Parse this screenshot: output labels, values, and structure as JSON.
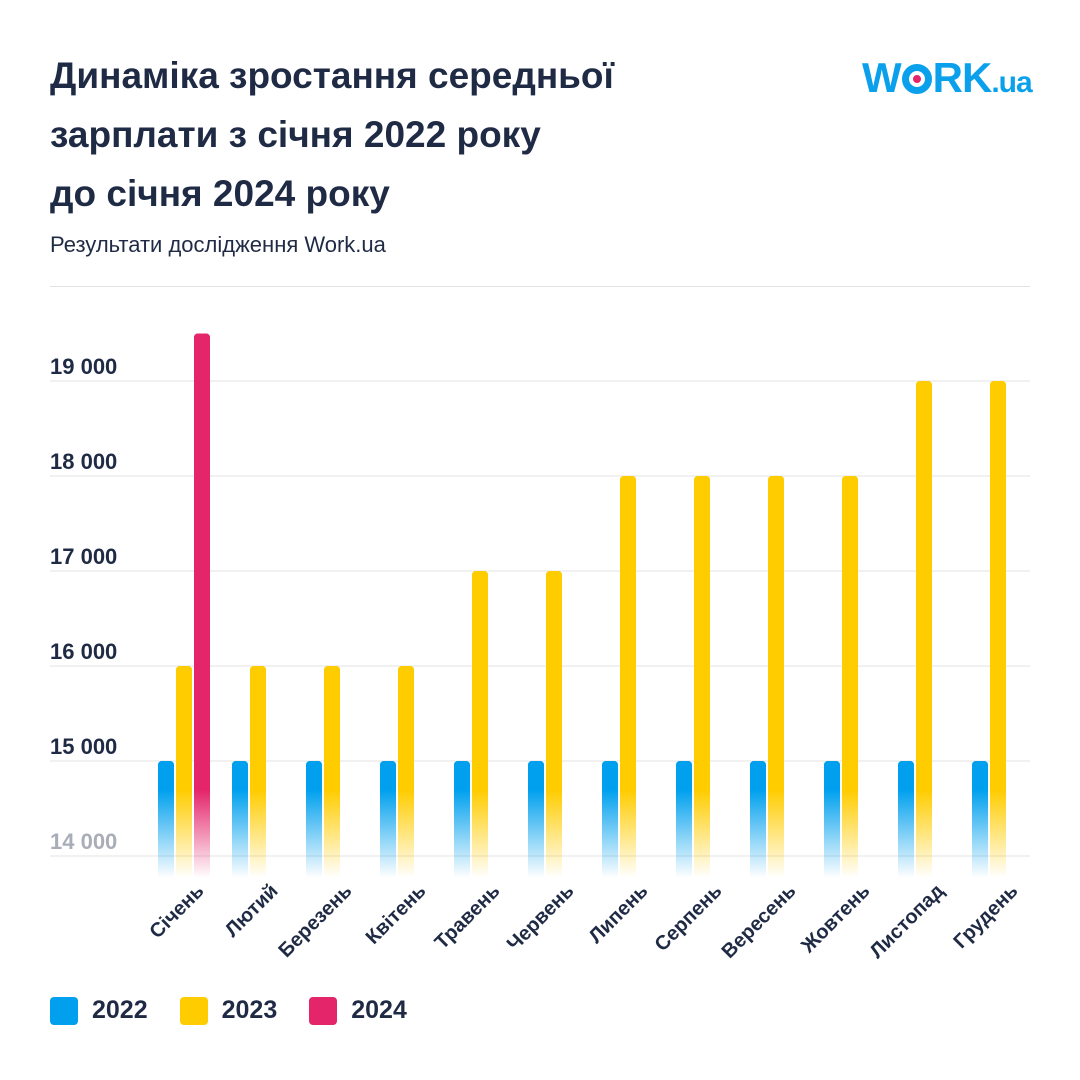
{
  "header": {
    "title_lines": [
      "Динаміка зростання середньої",
      "зарплати з січня 2022 року",
      "до січня 2024 року"
    ],
    "subtitle": "Результати дослідження Work.ua",
    "logo_text": "WORK.ua"
  },
  "colors": {
    "2022": "#00a0ee",
    "2023": "#ffcc00",
    "2024": "#e4256a",
    "text": "#1f2a44",
    "grid": "#e3e3e3"
  },
  "chart_data": {
    "type": "bar",
    "title": "Динаміка зростання середньої зарплати з січня 2022 року до січня 2024 року",
    "subtitle": "Результати дослідження Work.ua",
    "categories": [
      "Січень",
      "Лютий",
      "Березень",
      "Квітень",
      "Травень",
      "Червень",
      "Липень",
      "Серпень",
      "Вересень",
      "Жовтень",
      "Листопад",
      "Грудень"
    ],
    "series": [
      {
        "name": "2022",
        "values": [
          15000,
          15000,
          15000,
          15000,
          15000,
          15000,
          15000,
          15000,
          15000,
          15000,
          15000,
          15000
        ]
      },
      {
        "name": "2023",
        "values": [
          16000,
          16000,
          16000,
          16000,
          17000,
          17000,
          18000,
          18000,
          18000,
          18000,
          19000,
          19000
        ]
      },
      {
        "name": "2024",
        "values": [
          19500,
          null,
          null,
          null,
          null,
          null,
          null,
          null,
          null,
          null,
          null,
          null
        ]
      }
    ],
    "yticks": [
      14000,
      15000,
      16000,
      17000,
      18000,
      19000
    ],
    "ytick_labels": [
      "14 000",
      "15 000",
      "16 000",
      "17 000",
      "18 000",
      "19 000"
    ],
    "ylim": [
      13770,
      20000
    ],
    "grid": true,
    "legend": "bottom-left",
    "xlabel": "",
    "ylabel": ""
  }
}
